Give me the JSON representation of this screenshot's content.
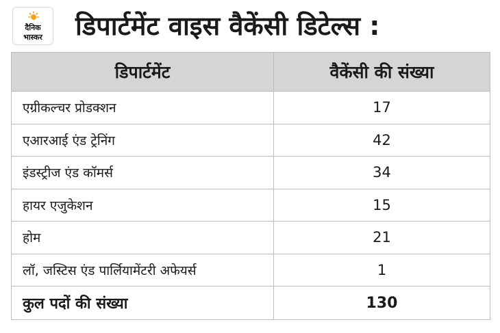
{
  "logo": {
    "line1": "दैनिक",
    "line2": "भास्कर",
    "icon": "sun-icon",
    "accent": "#f7a21b"
  },
  "title": "डिपार्टमेंट वाइस वैकेंसी डिटेल्स :",
  "table": {
    "headers": [
      "डिपार्टमेंट",
      "वैकेंसी की संख्या"
    ],
    "rows": [
      {
        "department": "एग्रीकल्चर प्रोडक्शन",
        "vacancies": "17"
      },
      {
        "department": "एआरआई एंड ट्रेनिंग",
        "vacancies": "42"
      },
      {
        "department": "इंडस्ट्रीज एंड कॉमर्स",
        "vacancies": "34"
      },
      {
        "department": "हायर एजुकेशन",
        "vacancies": "15"
      },
      {
        "department": "होम",
        "vacancies": "21"
      },
      {
        "department": "लॉ, जस्टिस एंड पार्लियामेंटरी अफेयर्स",
        "vacancies": "1"
      }
    ],
    "total": {
      "label": "कुल पदों की संख्या",
      "value": "130"
    },
    "header_bg": "#d5d5d5"
  }
}
